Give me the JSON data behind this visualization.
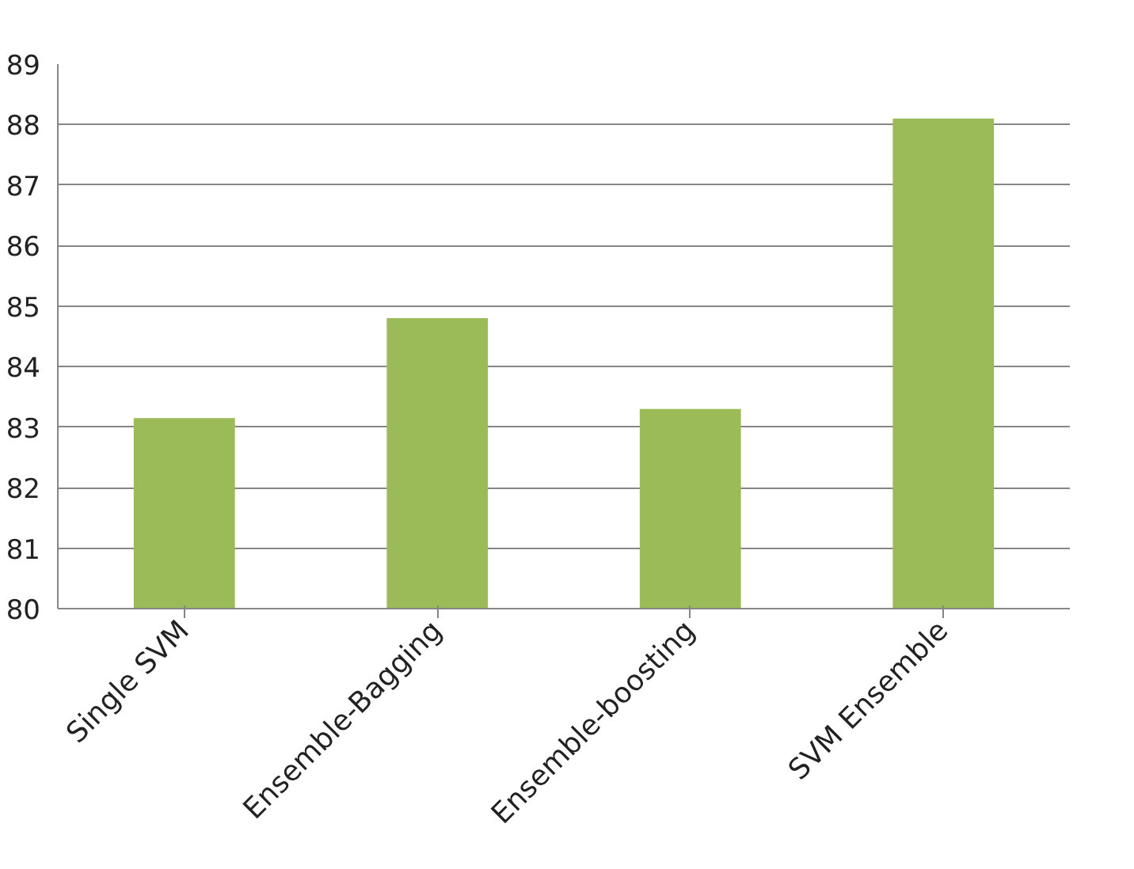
{
  "chart_data": {
    "type": "bar",
    "categories": [
      "Single SVM",
      "Ensemble-Bagging",
      "Ensemble-boosting",
      "SVM Ensemble"
    ],
    "values": [
      83.15,
      84.8,
      83.3,
      88.1
    ],
    "color": "#9bbb59",
    "ylim": [
      80,
      89
    ],
    "yticks": [
      80,
      81,
      82,
      83,
      84,
      85,
      86,
      87,
      88,
      89
    ],
    "grid": "y"
  }
}
